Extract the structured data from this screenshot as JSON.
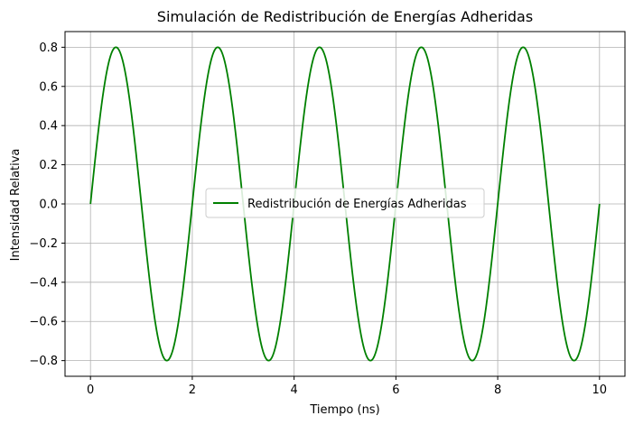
{
  "chart_data": {
    "type": "line",
    "title": "Simulación de Redistribución de Energías Adheridas",
    "xlabel": "Tiempo (ns)",
    "ylabel": "Intensidad Relativa",
    "xlim": [
      -0.5,
      10.5
    ],
    "ylim": [
      -0.88,
      0.88
    ],
    "xticks": [
      0,
      2,
      4,
      6,
      8,
      10
    ],
    "xtick_labels": [
      "0",
      "2",
      "4",
      "6",
      "8",
      "10"
    ],
    "yticks": [
      -0.8,
      -0.6,
      -0.4,
      -0.2,
      0.0,
      0.2,
      0.4,
      0.6,
      0.8
    ],
    "ytick_labels": [
      "−0.8",
      "−0.6",
      "−0.4",
      "−0.2",
      "0.0",
      "0.2",
      "0.4",
      "0.6",
      "0.8"
    ],
    "grid": true,
    "legend_position": "center",
    "series": [
      {
        "name": "Redistribución de Energías Adheridas",
        "color": "#008000",
        "function": "0.8 * sin(pi * t)",
        "x_range": [
          0,
          10
        ],
        "amplitude": 0.8,
        "period": 2
      }
    ]
  }
}
